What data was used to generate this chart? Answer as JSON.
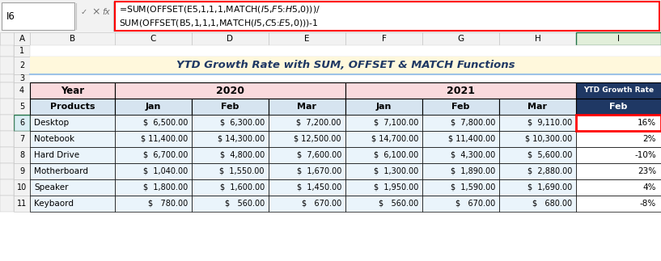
{
  "formula_bar_cell": "I6",
  "formula_bar_text_line1": "=SUM(OFFSET(E5,1,1,1,MATCH($I$5,$F$5:$H$5,0)))/",
  "formula_bar_text_line2": "SUM(OFFSET(B5,1,1,1,MATCH($I$5,$C$5:$E$5,0)))-1",
  "title": "YTD Growth Rate with SUM, OFFSET & MATCH Functions",
  "title_bg": "#FFF8DC",
  "title_color": "#1F3864",
  "data_rows": [
    [
      "Desktop",
      6500,
      6300,
      7200,
      7100,
      7800,
      9110,
      "16%"
    ],
    [
      "Notebook",
      11400,
      14300,
      12500,
      14700,
      11400,
      10300,
      "2%"
    ],
    [
      "Hard Drive",
      6700,
      4800,
      7600,
      6100,
      4300,
      5600,
      "-10%"
    ],
    [
      "Motherboard",
      1040,
      1550,
      1670,
      1300,
      1890,
      2880,
      "23%"
    ],
    [
      "Speaker",
      1800,
      1600,
      1450,
      1950,
      1590,
      1690,
      "4%"
    ],
    [
      "Keybaord",
      780,
      560,
      670,
      560,
      670,
      680,
      "-8%"
    ]
  ],
  "header4_bg": "#FADADD",
  "header5_bg": "#D6E4F0",
  "data_row_bg": "#EAF4FB",
  "ytd_header_bg": "#1F3864",
  "ytd_header_color": "#FFFFFF",
  "ytd_feb_bg": "#1F3864",
  "ytd_feb_color": "#FFFFFF",
  "border_color": "#000000",
  "formula_border_color": "#FF0000",
  "cell_i6_border_color": "#FF0000",
  "col_letter_highlight_bg": "#E2EFDA",
  "col_letter_bg": "#F2F2F2",
  "row_num_bg": "#F2F2F2",
  "fig_bg": "#FFFFFF",
  "formula_bar_bg": "#F2F2F2",
  "col_i_header_border": "#217346",
  "title_border_color": "#9DC3E6"
}
